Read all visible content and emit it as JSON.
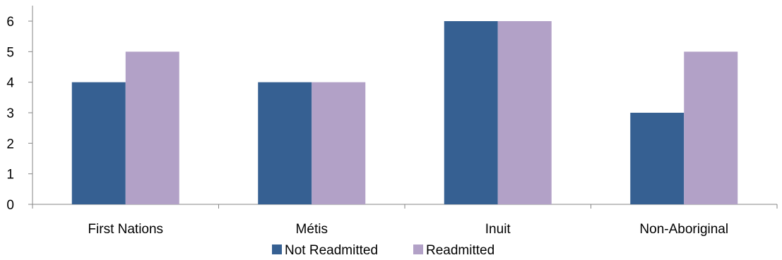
{
  "chart_data": {
    "type": "bar",
    "categories": [
      "First Nations",
      "Métis",
      "Inuit",
      "Non-Aboriginal"
    ],
    "series": [
      {
        "name": "Not Readmitted",
        "values": [
          4,
          4,
          6,
          3
        ],
        "color": "#366092"
      },
      {
        "name": "Readmitted",
        "values": [
          5,
          4,
          6,
          5
        ],
        "color": "#B2A1C7"
      }
    ],
    "ylim": [
      0,
      6
    ],
    "yticks": [
      "0",
      "1",
      "2",
      "3",
      "4",
      "5",
      "6"
    ],
    "grid": false,
    "legend_position": "bottom"
  }
}
